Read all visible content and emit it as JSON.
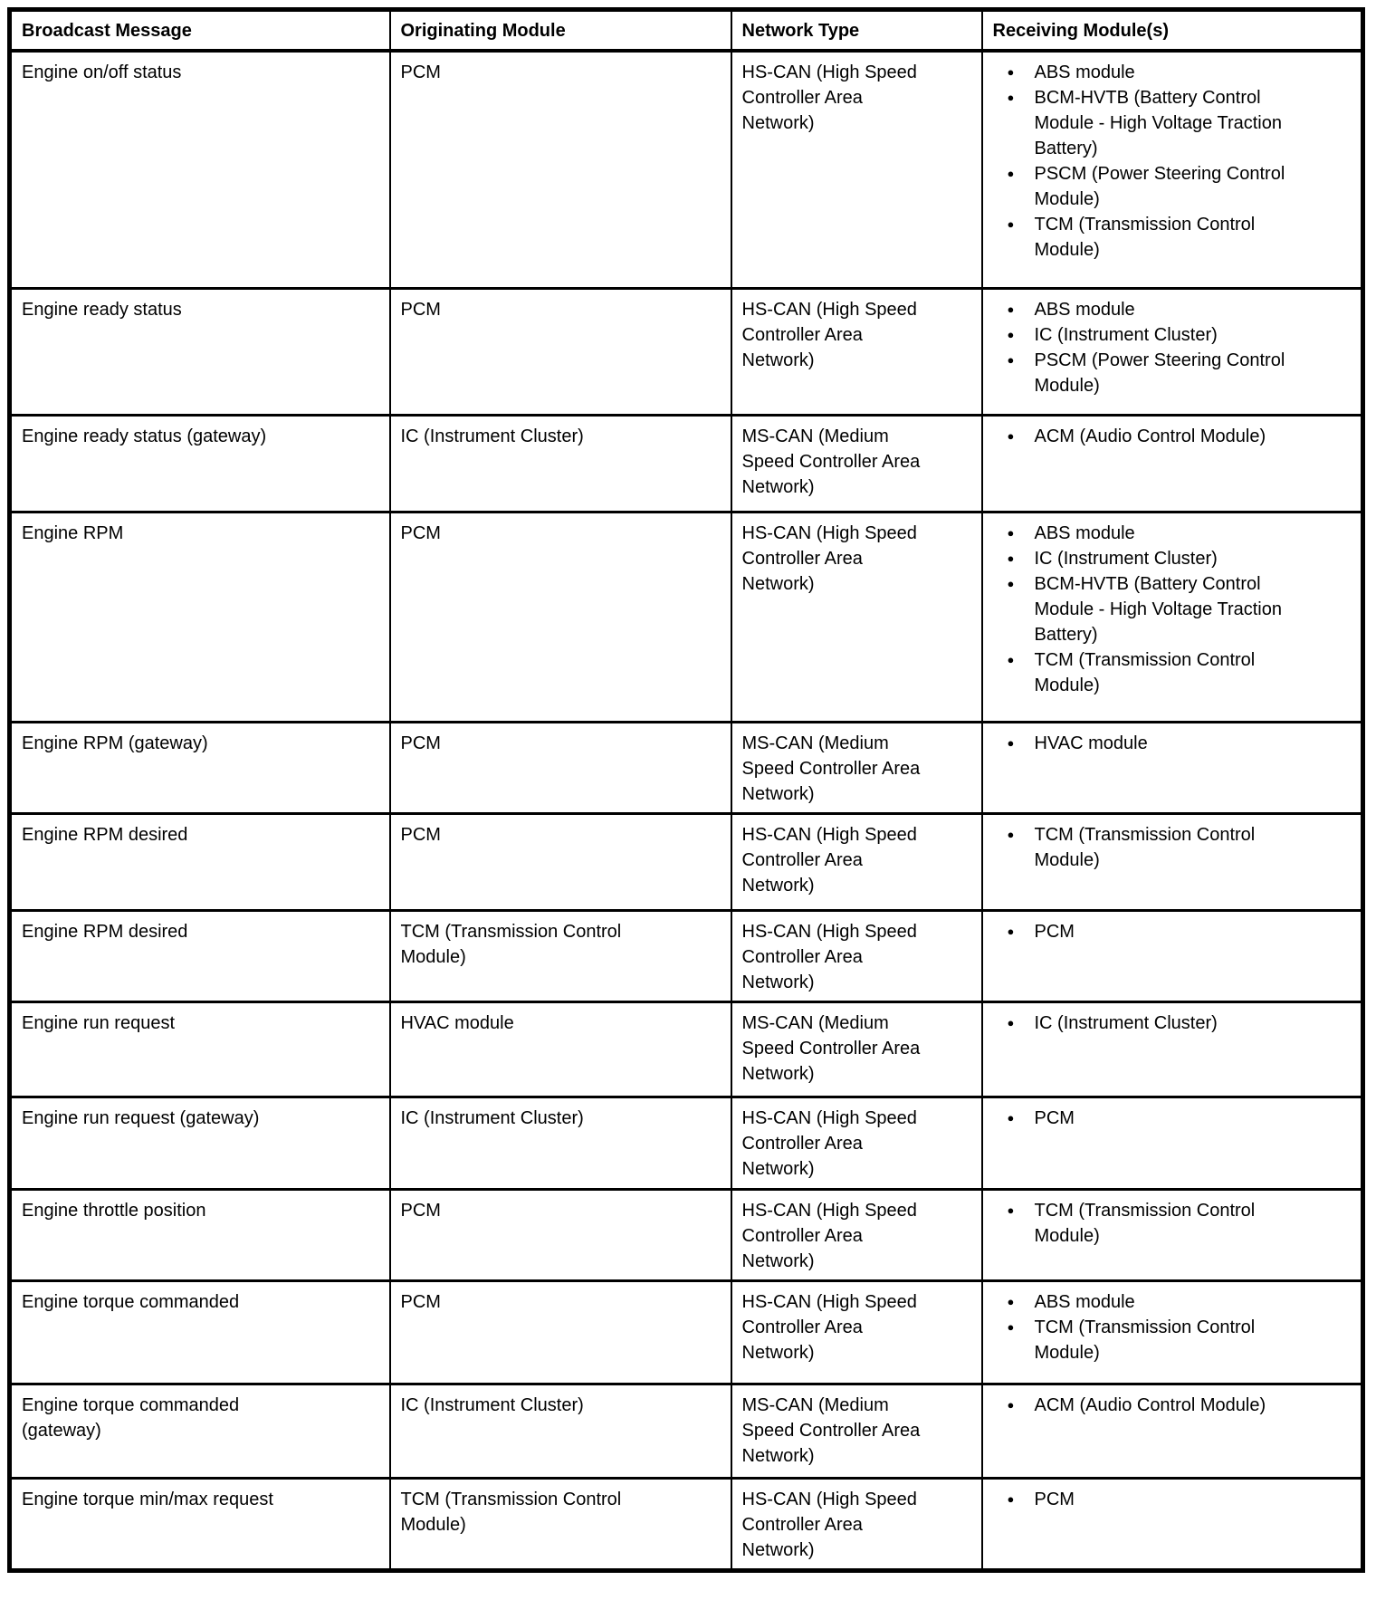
{
  "icons": {
    "bullet": "●"
  },
  "table": {
    "headers": [
      "Broadcast Message",
      "Originating Module",
      "Network Type",
      "Receiving Module(s)"
    ],
    "rows": [
      {
        "message": "Engine on/off status",
        "originating_module": "PCM",
        "network_type": "HS-CAN (High Speed Controller Area Network)",
        "receiving_modules": [
          "ABS module",
          "BCM-HVTB (Battery Control Module - High Voltage Traction Battery)",
          "PSCM (Power Steering Control Module)",
          "TCM (Transmission Control Module)"
        ]
      },
      {
        "message": "Engine ready status",
        "originating_module": "PCM",
        "network_type": "HS-CAN (High Speed Controller Area Network)",
        "receiving_modules": [
          "ABS module",
          "IC (Instrument Cluster)",
          "PSCM (Power Steering Control Module)"
        ]
      },
      {
        "message": "Engine ready status (gateway)",
        "originating_module": "IC (Instrument Cluster)",
        "network_type": "MS-CAN (Medium Speed Controller Area Network)",
        "receiving_modules": [
          "ACM (Audio Control Module)"
        ]
      },
      {
        "message": "Engine RPM",
        "originating_module": "PCM",
        "network_type": "HS-CAN (High Speed Controller Area Network)",
        "receiving_modules": [
          "ABS module",
          "IC (Instrument Cluster)",
          "BCM-HVTB (Battery Control Module - High Voltage Traction Battery)",
          "TCM (Transmission Control Module)"
        ]
      },
      {
        "message": "Engine RPM (gateway)",
        "originating_module": "PCM",
        "network_type": "MS-CAN (Medium Speed Controller Area Network)",
        "receiving_modules": [
          "HVAC module"
        ]
      },
      {
        "message": "Engine RPM desired",
        "originating_module": "PCM",
        "network_type": "HS-CAN (High Speed Controller Area Network)",
        "receiving_modules": [
          "TCM (Transmission Control Module)"
        ]
      },
      {
        "message": "Engine RPM desired",
        "originating_module": "TCM (Transmission Control Module)",
        "network_type": "HS-CAN (High Speed Controller Area Network)",
        "receiving_modules": [
          "PCM"
        ]
      },
      {
        "message": "Engine run request",
        "originating_module": "HVAC module",
        "network_type": "MS-CAN (Medium Speed Controller Area Network)",
        "receiving_modules": [
          "IC (Instrument Cluster)"
        ]
      },
      {
        "message": "Engine run request (gateway)",
        "originating_module": "IC (Instrument Cluster)",
        "network_type": "HS-CAN (High Speed Controller Area Network)",
        "receiving_modules": [
          "PCM"
        ]
      },
      {
        "message": "Engine throttle position",
        "originating_module": "PCM",
        "network_type": "HS-CAN (High Speed Controller Area Network)",
        "receiving_modules": [
          "TCM (Transmission Control Module)"
        ]
      },
      {
        "message": "Engine torque commanded",
        "originating_module": "PCM",
        "network_type": "HS-CAN (High Speed Controller Area Network)",
        "receiving_modules": [
          "ABS module",
          "TCM (Transmission Control Module)"
        ]
      },
      {
        "message": "Engine torque commanded (gateway)",
        "originating_module": "IC (Instrument Cluster)",
        "network_type": "MS-CAN (Medium Speed Controller Area Network)",
        "receiving_modules": [
          "ACM (Audio Control Module)"
        ]
      },
      {
        "message": "Engine torque min/max request",
        "originating_module": "TCM (Transmission Control Module)",
        "network_type": "HS-CAN (High Speed Controller Area Network)",
        "receiving_modules": [
          "PCM"
        ]
      }
    ]
  }
}
